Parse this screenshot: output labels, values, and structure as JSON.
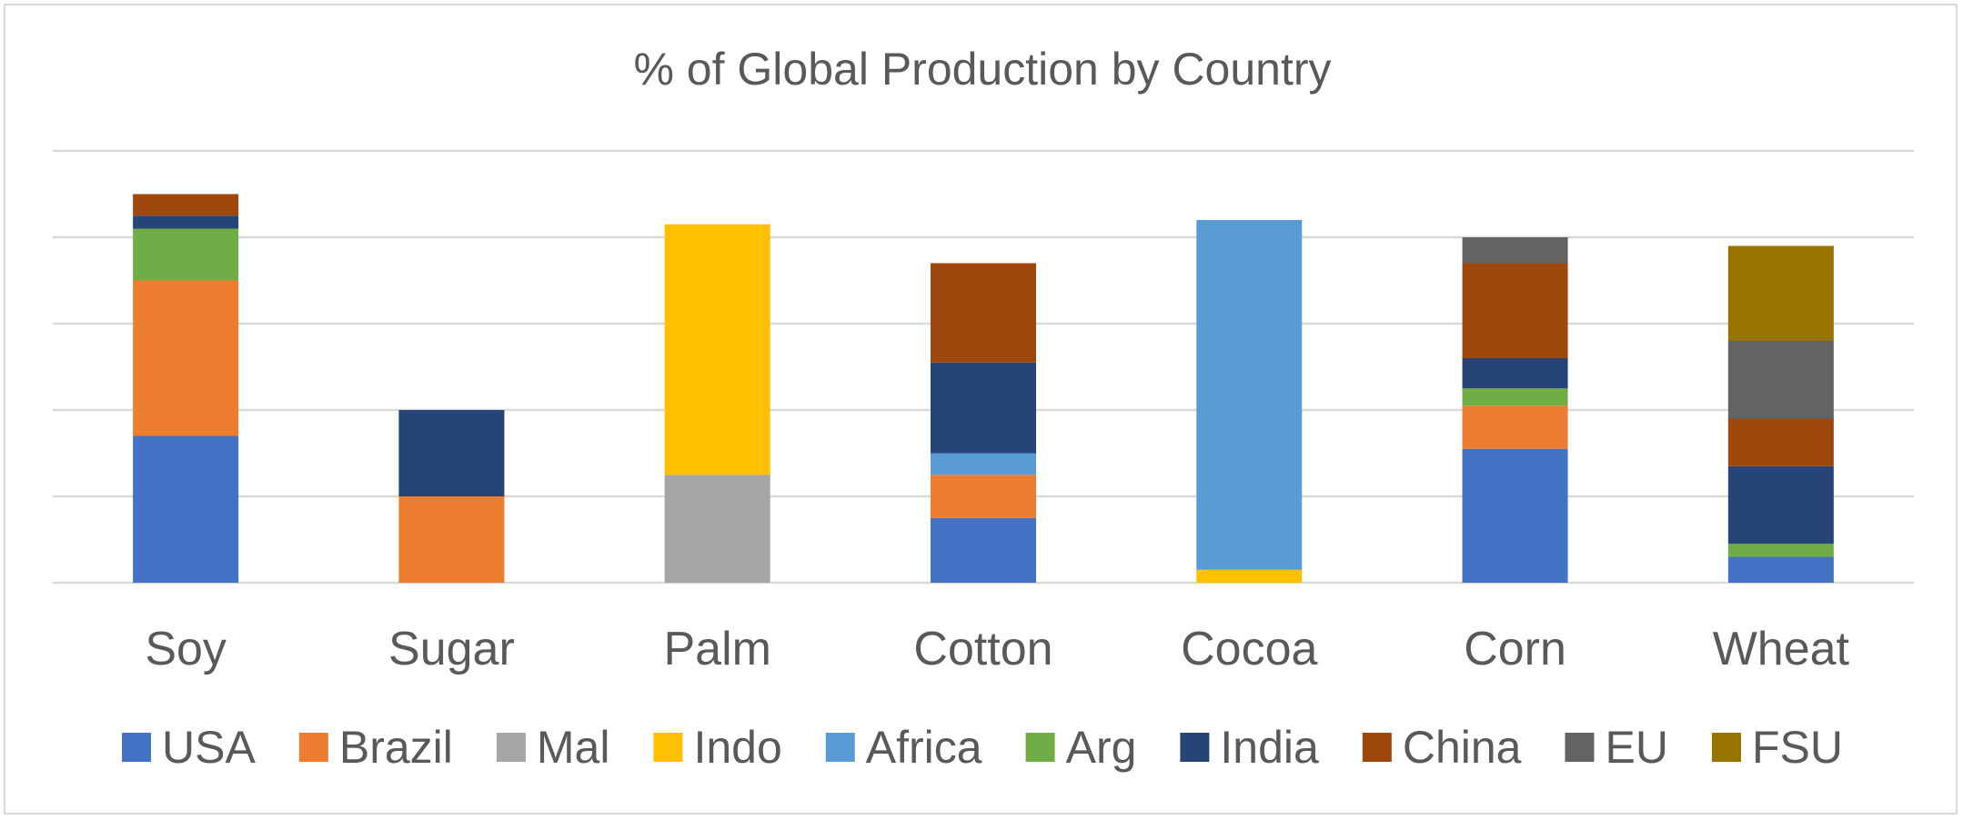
{
  "chart_data": {
    "type": "bar",
    "stacked": true,
    "title": "% of Global Production by Country",
    "categories": [
      "Soy",
      "Sugar",
      "Palm",
      "Cotton",
      "Cocoa",
      "Corn",
      "Wheat"
    ],
    "ylim": [
      0,
      100
    ],
    "grid": true,
    "legend_position": "bottom",
    "series": [
      {
        "name": "USA",
        "color": "#4472C4",
        "values": [
          34,
          0,
          0,
          15,
          0,
          31,
          6
        ]
      },
      {
        "name": "Brazil",
        "color": "#ED7D31",
        "values": [
          36,
          20,
          0,
          10,
          0,
          10,
          0
        ]
      },
      {
        "name": "Mal",
        "color": "#A5A5A5",
        "values": [
          0,
          0,
          25,
          0,
          0,
          0,
          0
        ]
      },
      {
        "name": "Indo",
        "color": "#FFC000",
        "values": [
          0,
          0,
          58,
          0,
          3,
          0,
          0
        ]
      },
      {
        "name": "Africa",
        "color": "#5B9BD5",
        "values": [
          0,
          0,
          0,
          5,
          81,
          0,
          0
        ]
      },
      {
        "name": "Arg",
        "color": "#70AD47",
        "values": [
          12,
          0,
          0,
          0,
          0,
          4,
          3
        ]
      },
      {
        "name": "India",
        "color": "#264478",
        "values": [
          3,
          20,
          0,
          21,
          0,
          7,
          18
        ]
      },
      {
        "name": "China",
        "color": "#9E480E",
        "values": [
          5,
          0,
          0,
          23,
          0,
          22,
          11
        ]
      },
      {
        "name": "EU",
        "color": "#636363",
        "values": [
          0,
          0,
          0,
          0,
          0,
          6,
          18
        ]
      },
      {
        "name": "FSU",
        "color": "#997300",
        "values": [
          0,
          0,
          0,
          0,
          0,
          0,
          22
        ]
      }
    ]
  }
}
